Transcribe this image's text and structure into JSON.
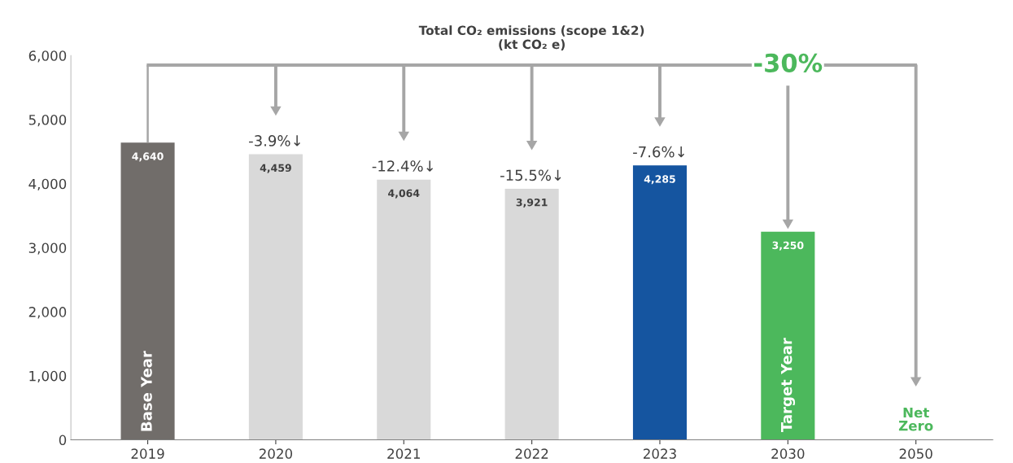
{
  "chart_data": {
    "type": "bar",
    "title": "Total CO₂ emissions (scope 1&2)\n(kt CO₂ e)",
    "categories": [
      "2019",
      "2020",
      "2021",
      "2022",
      "2023",
      "2030",
      "2050"
    ],
    "values": [
      4640,
      4459,
      4064,
      3921,
      4285,
      3250,
      null
    ],
    "colors": [
      "#716d6a",
      "#d9d9d9",
      "#d9d9d9",
      "#d9d9d9",
      "#1555a0",
      "#4cb85c",
      null
    ],
    "value_labels": [
      "4,640",
      "4,459",
      "4,064",
      "3,921",
      "4,285",
      "3,250",
      null
    ],
    "ylim": [
      0,
      6000
    ],
    "yticks": [
      0,
      {
        "value": 1000,
        "label": "1,000"
      },
      {
        "value": 2000,
        "label": "2,000"
      },
      {
        "value": 3000,
        "label": "3,000"
      },
      {
        "value": 4000,
        "label": "4,000"
      },
      {
        "value": 5000,
        "label": "5,000"
      },
      {
        "value": 6000,
        "label": "6,000"
      }
    ],
    "annotations": [
      {
        "text": "Base Year",
        "x": "2019",
        "y": 0
      },
      {
        "text": "-3.9%↓",
        "x": "2020",
        "y": 4459
      },
      {
        "text": "-12.4%↓",
        "x": "2021",
        "y": 4064
      },
      {
        "text": "-15.5%↓",
        "x": "2022",
        "y": 3921
      },
      {
        "text": "-7.6%↓",
        "x": "2023",
        "y": 4285
      },
      {
        "text": "Target Year",
        "x": "2030",
        "y": 0
      },
      "Net Zero",
      "-30%"
    ],
    "grid": false,
    "legend": false
  }
}
